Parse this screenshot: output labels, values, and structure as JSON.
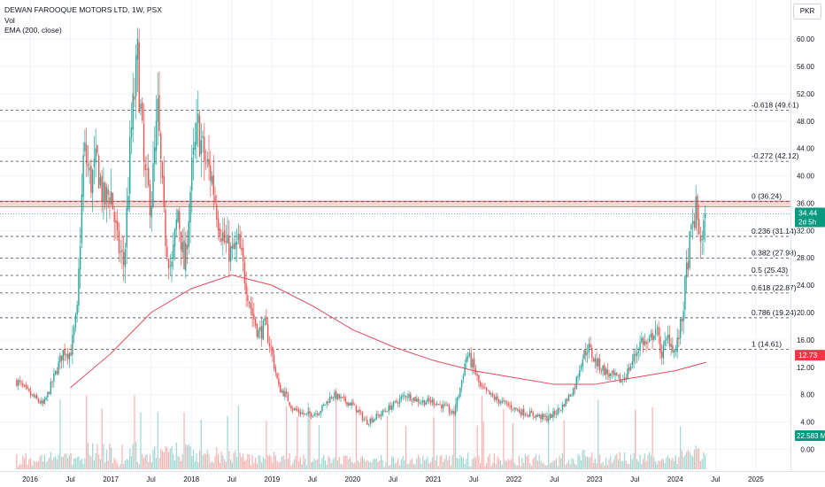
{
  "legend": {
    "symbol_line": "DEWAN FAROOQUE MOTORS LTD, 1W, PSX",
    "volume_label": "Vol",
    "ema_label": "EMA (200, close)"
  },
  "currency_button": "PKR",
  "colors": {
    "up": "#26a69a",
    "down": "#ef5350",
    "ema": "#e04b5a",
    "grid": "#f0f3fa",
    "fib": "#5d606b"
  },
  "chart_data": {
    "type": "candlestick",
    "title": "DEWAN FAROOQUE MOTORS LTD, 1W, PSX",
    "price_axis_ticks": [
      "60.00",
      "56.00",
      "52.00",
      "48.00",
      "44.00",
      "40.00",
      "36.00",
      "32.00",
      "28.00",
      "24.00",
      "20.00",
      "16.00",
      "12.00",
      "8.00",
      "4.00",
      "0.00"
    ],
    "time_axis_ticks": [
      "2016",
      "Jul",
      "2017",
      "Jul",
      "2018",
      "Jul",
      "2019",
      "Jul",
      "2020",
      "Jul",
      "2021",
      "Jul",
      "2022",
      "Jul",
      "2023",
      "Jul",
      "2024",
      "Jul",
      "2025"
    ],
    "fibonacci_levels": [
      {
        "label": "-0.618 (49.61)",
        "value": 49.61
      },
      {
        "label": "-0.272 (42.12)",
        "value": 42.12
      },
      {
        "label": "0 (36.24)",
        "value": 36.24
      },
      {
        "label": "0.236 (31.14)",
        "value": 31.14
      },
      {
        "label": "0.382 (27.98)",
        "value": 27.98
      },
      {
        "label": "0.5 (25.43)",
        "value": 25.43
      },
      {
        "label": "0.618 (22.87)",
        "value": 22.87
      },
      {
        "label": "0.786 (19.24)",
        "value": 19.24
      },
      {
        "label": "1 (14.61)",
        "value": 14.61
      }
    ],
    "resistance_zone": [
      35.5,
      36.3
    ],
    "last_price": {
      "value": 34.44,
      "label": "34.44",
      "countdown": "2d 5h",
      "color": "#089981"
    },
    "ema_last": {
      "value": 12.73,
      "label": "12.73",
      "color": "#f23645"
    },
    "volume_last": {
      "label": "22.583 M",
      "color": "#089981"
    },
    "price_path": [
      [
        "2015-11",
        10.0
      ],
      [
        "2016-01",
        8.0
      ],
      [
        "2016-03",
        6.5
      ],
      [
        "2016-04",
        9.0
      ],
      [
        "2016-06",
        14.5
      ],
      [
        "2016-07",
        14.0
      ],
      [
        "2016-08",
        20.0
      ],
      [
        "2016-09",
        44.0
      ],
      [
        "2016-10",
        39.0
      ],
      [
        "2016-11",
        42.0
      ],
      [
        "2016-12",
        36.0
      ],
      [
        "2017-01",
        38.0
      ],
      [
        "2017-02",
        30.0
      ],
      [
        "2017-03",
        27.0
      ],
      [
        "2017-04",
        46.0
      ],
      [
        "2017-05",
        57.0
      ],
      [
        "2017-06",
        40.0
      ],
      [
        "2017-07",
        36.0
      ],
      [
        "2017-08",
        49.0
      ],
      [
        "2017-09",
        32.0
      ],
      [
        "2017-10",
        26.0
      ],
      [
        "2017-11",
        35.0
      ],
      [
        "2017-12",
        26.0
      ],
      [
        "2018-01",
        40.0
      ],
      [
        "2018-02",
        47.0
      ],
      [
        "2018-03",
        42.0
      ],
      [
        "2018-04",
        40.0
      ],
      [
        "2018-05",
        34.0
      ],
      [
        "2018-06",
        30.0
      ],
      [
        "2018-07",
        28.5
      ],
      [
        "2018-08",
        30.0
      ],
      [
        "2018-09",
        25.0
      ],
      [
        "2018-10",
        20.0
      ],
      [
        "2018-11",
        17.0
      ],
      [
        "2018-12",
        18.0
      ],
      [
        "2019-01",
        14.0
      ],
      [
        "2019-02",
        9.0
      ],
      [
        "2019-03",
        8.0
      ],
      [
        "2019-04",
        6.0
      ],
      [
        "2019-06",
        5.0
      ],
      [
        "2019-08",
        5.5
      ],
      [
        "2019-10",
        8.0
      ],
      [
        "2019-12",
        7.0
      ],
      [
        "2020-01",
        6.5
      ],
      [
        "2020-03",
        4.0
      ],
      [
        "2020-05",
        5.0
      ],
      [
        "2020-07",
        6.5
      ],
      [
        "2020-09",
        8.0
      ],
      [
        "2020-11",
        7.0
      ],
      [
        "2021-01",
        7.0
      ],
      [
        "2021-03",
        6.0
      ],
      [
        "2021-04",
        5.0
      ],
      [
        "2021-05",
        9.0
      ],
      [
        "2021-06",
        14.0
      ],
      [
        "2021-07",
        12.0
      ],
      [
        "2021-08",
        9.0
      ],
      [
        "2021-10",
        7.5
      ],
      [
        "2021-12",
        6.5
      ],
      [
        "2022-02",
        5.5
      ],
      [
        "2022-04",
        5.0
      ],
      [
        "2022-06",
        4.5
      ],
      [
        "2022-08",
        6.0
      ],
      [
        "2022-10",
        9.0
      ],
      [
        "2022-11",
        13.0
      ],
      [
        "2022-12",
        15.0
      ],
      [
        "2023-01",
        13.0
      ],
      [
        "2023-03",
        11.0
      ],
      [
        "2023-05",
        10.0
      ],
      [
        "2023-06",
        11.5
      ],
      [
        "2023-08",
        16.0
      ],
      [
        "2023-09",
        15.0
      ],
      [
        "2023-10",
        18.0
      ],
      [
        "2023-11",
        14.0
      ],
      [
        "2023-12",
        16.5
      ],
      [
        "2024-01",
        14.0
      ],
      [
        "2024-02",
        19.0
      ],
      [
        "2024-03",
        29.0
      ],
      [
        "2024-04",
        35.0
      ],
      [
        "2024-05",
        30.0
      ],
      [
        "2024-05-20",
        34.44
      ]
    ],
    "ema_path": [
      [
        "2016-07",
        9.0
      ],
      [
        "2017-01",
        14.0
      ],
      [
        "2017-07",
        20.0
      ],
      [
        "2018-01",
        23.5
      ],
      [
        "2018-07",
        25.5
      ],
      [
        "2019-01",
        24.0
      ],
      [
        "2019-07",
        21.0
      ],
      [
        "2020-01",
        17.5
      ],
      [
        "2020-07",
        15.0
      ],
      [
        "2021-01",
        13.0
      ],
      [
        "2021-07",
        11.5
      ],
      [
        "2022-01",
        10.5
      ],
      [
        "2022-07",
        9.5
      ],
      [
        "2023-01",
        9.5
      ],
      [
        "2023-07",
        10.5
      ],
      [
        "2024-01",
        11.5
      ],
      [
        "2024-05-20",
        12.73
      ]
    ]
  }
}
